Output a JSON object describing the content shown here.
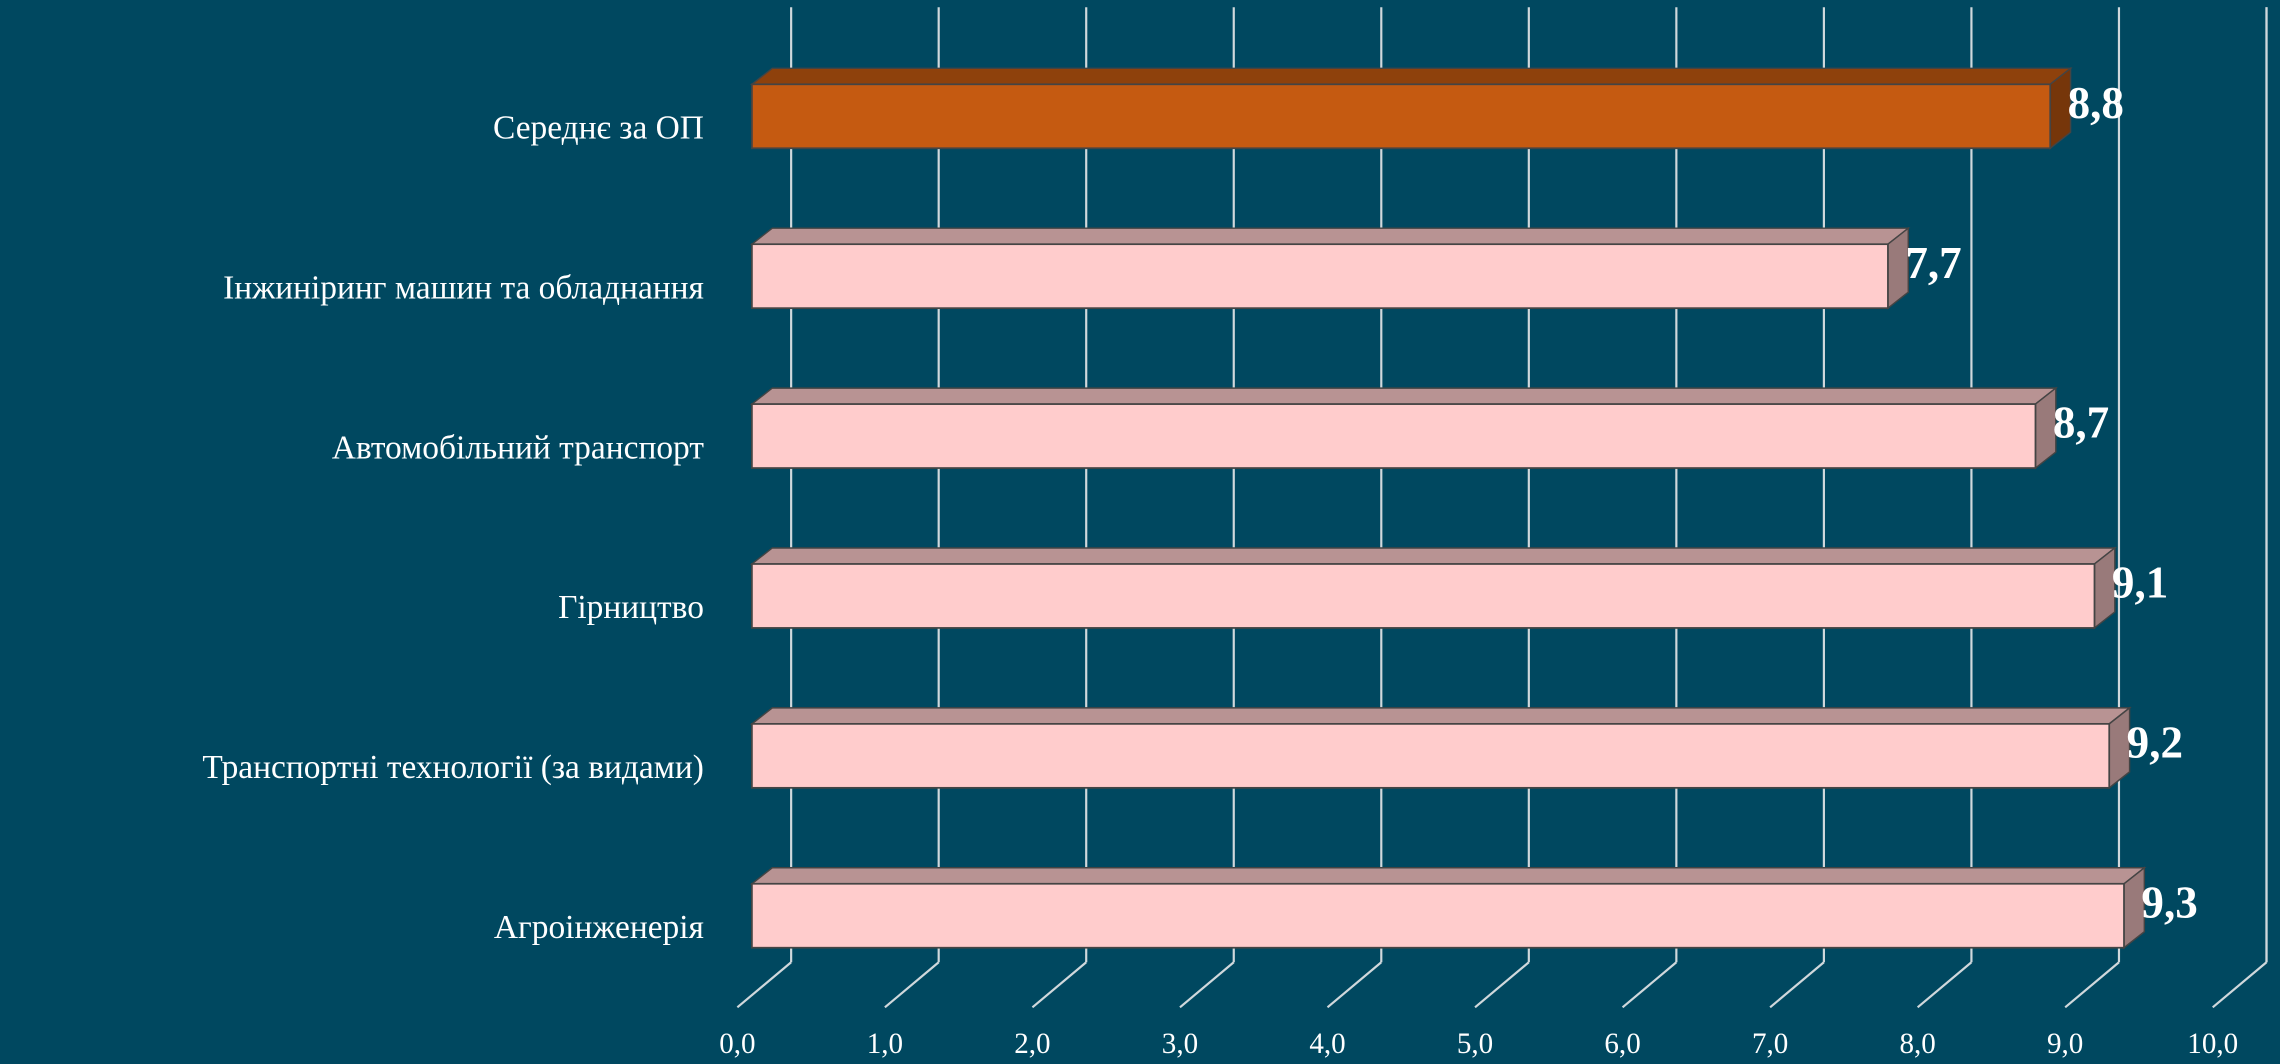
{
  "chart_data": {
    "type": "bar",
    "orientation": "horizontal",
    "categories": [
      "Середнє за ОП",
      "Інжиніринг машин та обладнання",
      "Автомобільний транспорт",
      "Гірництво",
      "Транспортні технології (за видами)",
      "Агроінженерія"
    ],
    "values": [
      8.8,
      7.7,
      8.7,
      9.1,
      9.2,
      9.3
    ],
    "value_labels": [
      "8,8",
      "7,7",
      "8,7",
      "9,1",
      "9,2",
      "9,3"
    ],
    "colors": [
      "#c55a11",
      "#ffcccc",
      "#ffcccc",
      "#ffcccc",
      "#ffcccc",
      "#ffcccc"
    ],
    "xlim": [
      0,
      10
    ],
    "xticks": [
      {
        "value": 0,
        "label": "0,0"
      },
      {
        "value": 1,
        "label": "1,0"
      },
      {
        "value": 2,
        "label": "2,0"
      },
      {
        "value": 3,
        "label": "3,0"
      },
      {
        "value": 4,
        "label": "4,0"
      },
      {
        "value": 5,
        "label": "5,0"
      },
      {
        "value": 6,
        "label": "6,0"
      },
      {
        "value": 7,
        "label": "7,0"
      },
      {
        "value": 8,
        "label": "8,0"
      },
      {
        "value": 9,
        "label": "9,0"
      },
      {
        "value": 10,
        "label": "10,0"
      }
    ],
    "grid": true
  }
}
